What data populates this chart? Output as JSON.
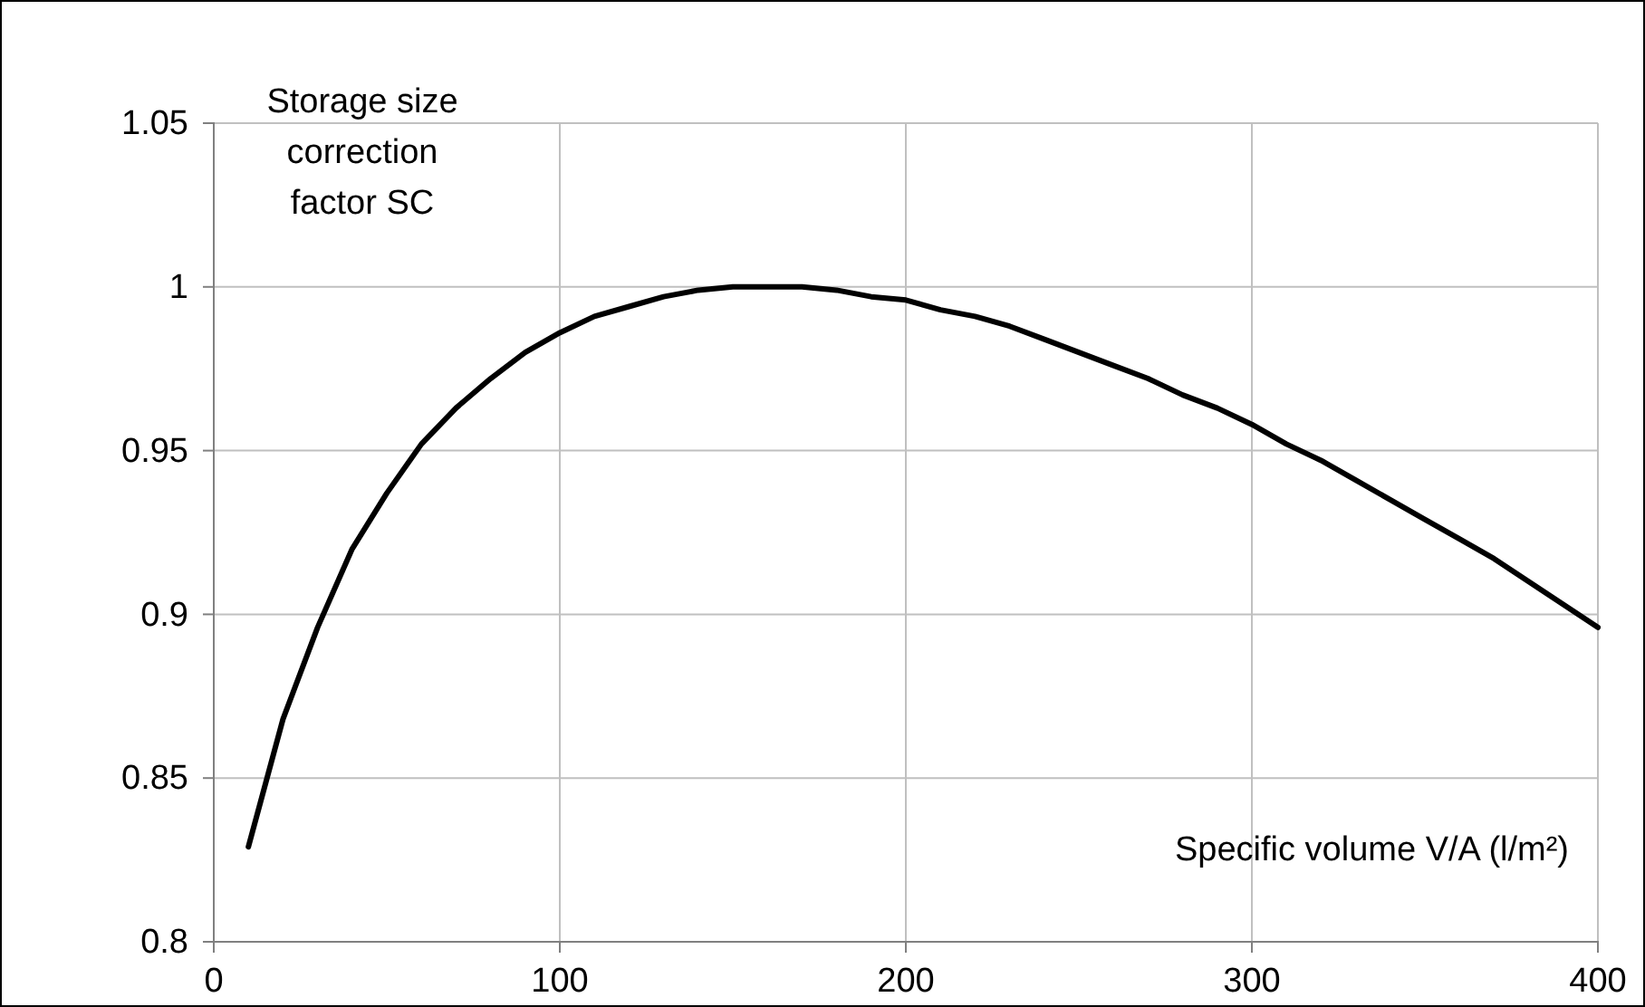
{
  "chart_data": {
    "type": "line",
    "xlabel": "Specific volume V/A (l/m²)",
    "ylabel": "Storage size correction factor SC",
    "x": [
      10,
      20,
      30,
      40,
      50,
      60,
      70,
      80,
      90,
      100,
      110,
      120,
      130,
      140,
      150,
      160,
      170,
      180,
      190,
      200,
      210,
      220,
      230,
      240,
      250,
      260,
      270,
      280,
      290,
      300,
      310,
      320,
      330,
      340,
      350,
      360,
      370,
      380,
      390,
      400
    ],
    "series": [
      {
        "color": "#000000",
        "values": [
          0.829,
          0.868,
          0.896,
          0.92,
          0.937,
          0.952,
          0.963,
          0.972,
          0.98,
          0.986,
          0.991,
          0.994,
          0.997,
          0.999,
          1.0,
          1.0,
          1.0,
          0.999,
          0.997,
          0.996,
          0.993,
          0.991,
          0.988,
          0.984,
          0.98,
          0.976,
          0.972,
          0.967,
          0.963,
          0.958,
          0.952,
          0.947,
          0.941,
          0.935,
          0.929,
          0.923,
          0.917,
          0.91,
          0.903,
          0.896
        ]
      }
    ],
    "xlim": [
      0,
      400
    ],
    "xticks": [
      0,
      100,
      200,
      300,
      400
    ],
    "ylim": [
      0.8,
      1.05
    ],
    "yticks": [
      0.8,
      0.85,
      0.9,
      0.95,
      1,
      1.05
    ],
    "grid": true,
    "marker": "none",
    "line_style": "solid"
  }
}
